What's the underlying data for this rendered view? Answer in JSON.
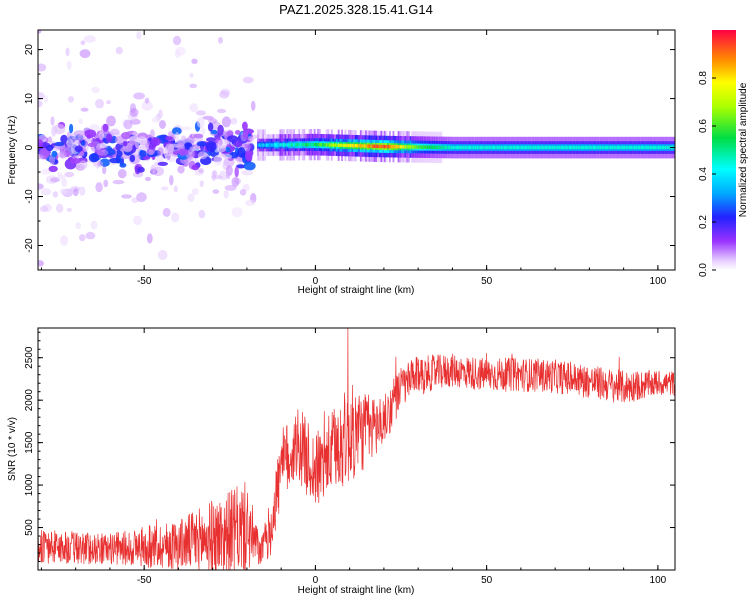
{
  "title": "PAZ1.2025.328.15.41.G14",
  "colors": {
    "snr_line": "#e83030",
    "axis": "#000000"
  },
  "chart_data": [
    {
      "type": "heatmap",
      "xlabel": "Height of straight line (km)",
      "ylabel": "Frequency (Hz)",
      "xlim": [
        -81,
        105
      ],
      "ylim": [
        -25,
        24
      ],
      "x_ticks": [
        -50,
        0,
        50,
        100
      ],
      "y_ticks": [
        -20,
        -10,
        0,
        10,
        20
      ],
      "colorbar": {
        "label": "Normalized spectral amplitude",
        "range": [
          0,
          1
        ],
        "ticks": [
          0.0,
          0.2,
          0.4,
          0.6,
          0.8
        ]
      },
      "ridge": {
        "description_points_x": [
          -15,
          0,
          10,
          20,
          30,
          40,
          60,
          80,
          105
        ],
        "frequency_hz": [
          0.5,
          0.6,
          0.4,
          0.2,
          0.1,
          0.0,
          0.0,
          0.0,
          0.0
        ],
        "peak_amplitude": [
          0.35,
          0.55,
          0.8,
          0.95,
          0.6,
          0.45,
          0.45,
          0.45,
          0.45
        ]
      },
      "scatter_region_x": [
        -81,
        -18
      ],
      "scatter_region_freq_spread_hz": [
        -25,
        24
      ]
    },
    {
      "type": "line",
      "xlabel": "Height of straight line (km)",
      "ylabel": "SNR (10 * v/v)",
      "xlim": [
        -81,
        105
      ],
      "ylim": [
        0,
        2850
      ],
      "x_ticks": [
        -50,
        0,
        50,
        100
      ],
      "y_ticks": [
        500,
        1000,
        1500,
        2000,
        2500
      ],
      "trend": {
        "x": [
          -81,
          -70,
          -60,
          -50,
          -40,
          -30,
          -20,
          -16,
          -13,
          -10,
          -5,
          0,
          5,
          10,
          15,
          20,
          25,
          30,
          40,
          50,
          60,
          70,
          80,
          90,
          100,
          105
        ],
        "mean": [
          280,
          260,
          250,
          270,
          300,
          380,
          500,
          200,
          500,
          1200,
          1500,
          1150,
          1400,
          1600,
          1650,
          1750,
          2150,
          2300,
          2350,
          2300,
          2300,
          2280,
          2220,
          2150,
          2200,
          2200
        ],
        "noise_amplitude": [
          200,
          200,
          180,
          250,
          300,
          450,
          550,
          150,
          350,
          450,
          450,
          450,
          500,
          600,
          450,
          300,
          250,
          220,
          200,
          200,
          200,
          200,
          200,
          200,
          150,
          150
        ]
      },
      "spike": {
        "x": 9.5,
        "y": 2850
      }
    }
  ]
}
